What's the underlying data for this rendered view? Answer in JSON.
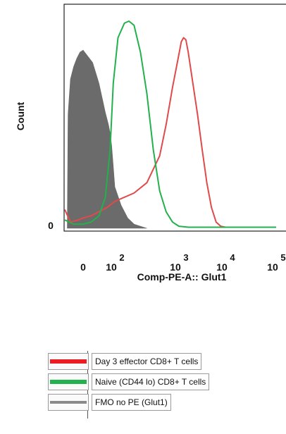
{
  "chart_data": {
    "type": "line",
    "title": "",
    "xlabel": "Comp-PE-A:: Glut1",
    "ylabel": "Count",
    "x_scale": "biexponential",
    "x_ticks": [
      {
        "base": "0",
        "exp": ""
      },
      {
        "base": "10",
        "exp": "2"
      },
      {
        "base": "10",
        "exp": "3"
      },
      {
        "base": "10",
        "exp": "4"
      },
      {
        "base": "10",
        "exp": "5"
      }
    ],
    "y_ticks": [
      "0"
    ],
    "ylim": [
      0,
      100
    ],
    "grid": false,
    "legend_position": "bottom",
    "series": [
      {
        "name": "Day 3 effector CD8+ T cells",
        "color": "#e04a4a",
        "style": "line",
        "x": [
          -1.2,
          -0.8,
          -0.3,
          0,
          0.5,
          1.0,
          1.5,
          2.0,
          2.3,
          2.5,
          2.7,
          2.8,
          2.9,
          3.0,
          3.05,
          3.1,
          3.15,
          3.2,
          3.3,
          3.4,
          3.5,
          3.6,
          3.7,
          3.8,
          3.9,
          4.0,
          4.2,
          4.5,
          5.0
        ],
        "y": [
          0.09,
          0.03,
          0.04,
          0.05,
          0.06,
          0.08,
          0.1,
          0.13,
          0.17,
          0.22,
          0.35,
          0.5,
          0.68,
          0.84,
          0.9,
          0.92,
          0.91,
          0.85,
          0.7,
          0.55,
          0.38,
          0.22,
          0.1,
          0.03,
          0.01,
          0.005,
          0.005,
          0.005,
          0.005
        ]
      },
      {
        "name": "Naive (CD44 lo) CD8+ T cells",
        "color": "#22b14c",
        "style": "line",
        "x": [
          -1.2,
          -0.6,
          0.0,
          0.5,
          1.0,
          1.4,
          1.7,
          1.9,
          2.05,
          2.15,
          2.22,
          2.3,
          2.4,
          2.5,
          2.6,
          2.7,
          2.8,
          2.9,
          3.0,
          3.2,
          3.5,
          4.0,
          5.0
        ],
        "y": [
          0.04,
          0.02,
          0.02,
          0.03,
          0.06,
          0.15,
          0.38,
          0.7,
          0.92,
          0.99,
          1.0,
          0.98,
          0.85,
          0.65,
          0.38,
          0.18,
          0.08,
          0.03,
          0.01,
          0.005,
          0.005,
          0.005,
          0.005
        ]
      },
      {
        "name": "FMO no PE (Glut1)",
        "color": "#6b6b6b",
        "style": "filled",
        "x": [
          -1.0,
          -0.95,
          -0.8,
          -0.6,
          -0.4,
          -0.2,
          0.0,
          0.2,
          0.4,
          0.6,
          0.8,
          1.0,
          1.2,
          1.4,
          1.6,
          1.7,
          1.8,
          1.9,
          2.0,
          2.1,
          2.2,
          2.3,
          2.4,
          2.5
        ],
        "y": [
          0.0,
          0.55,
          0.72,
          0.78,
          0.82,
          0.85,
          0.86,
          0.84,
          0.82,
          0.8,
          0.75,
          0.7,
          0.63,
          0.56,
          0.5,
          0.46,
          0.4,
          0.3,
          0.2,
          0.11,
          0.05,
          0.02,
          0.01,
          0.0
        ]
      }
    ]
  }
}
